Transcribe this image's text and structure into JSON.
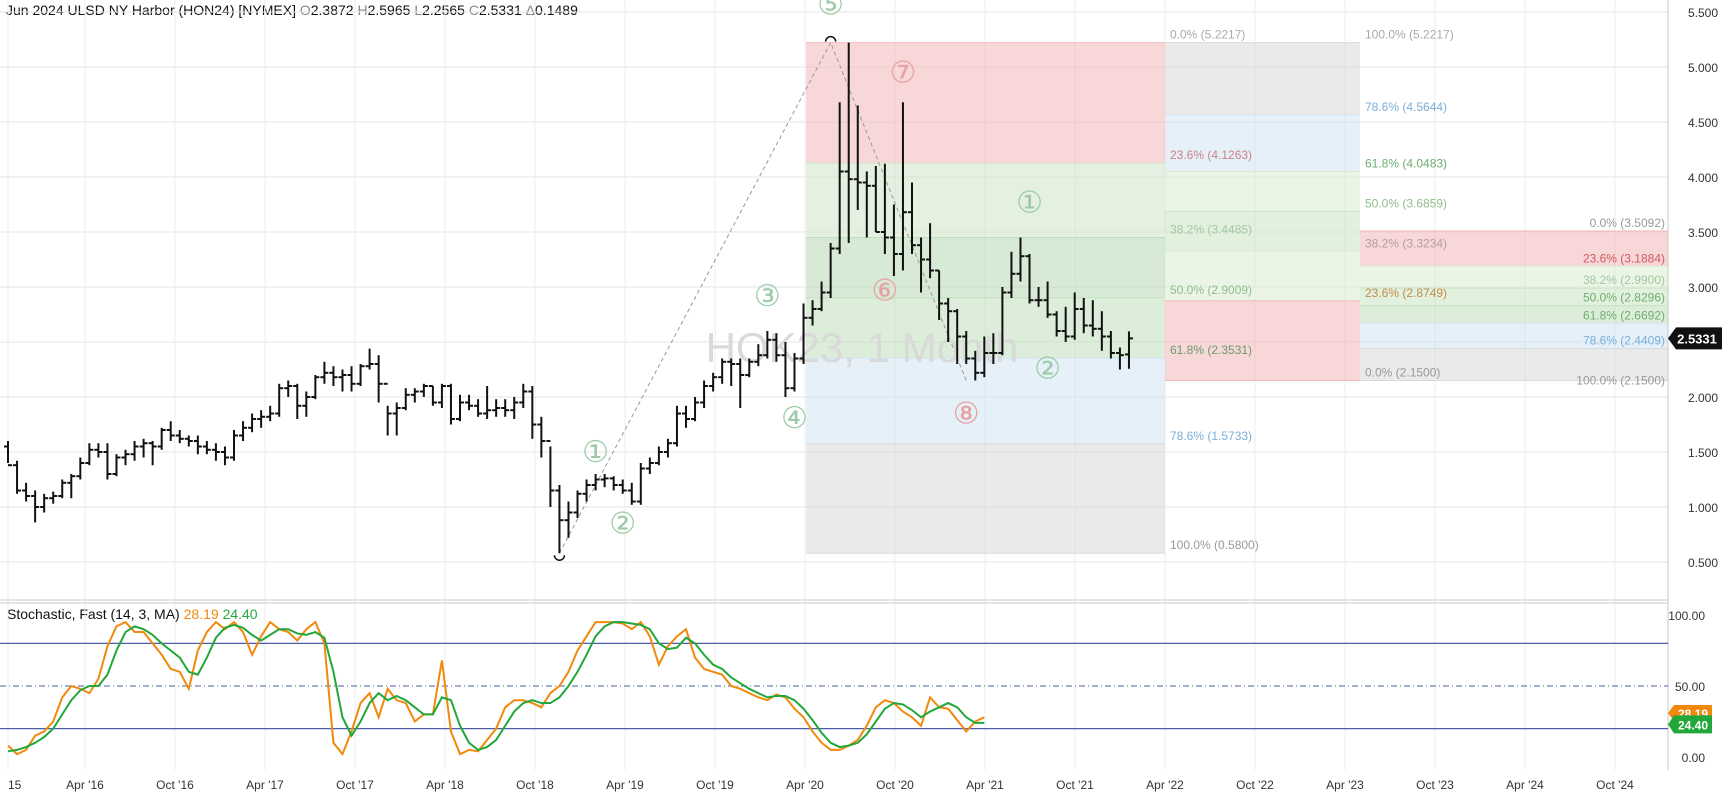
{
  "header": {
    "symbol": "Jun 2024 ULSD NY Harbor (HON24) [NYMEX]",
    "open_label": "O",
    "open": "2.3872",
    "high_label": "H",
    "high": "2.5965",
    "low_label": "L",
    "low": "2.2565",
    "close_label": "C",
    "close": "2.5331",
    "change_label": "Δ",
    "change": "0.1489"
  },
  "watermark": "HOK23, 1 Month",
  "last_price_tag": "2.5331",
  "stoch_header": {
    "title": "Stochastic, Fast  (14, 3, MA)",
    "k": "28.19",
    "d": "24.40"
  },
  "stoch_tags": {
    "k": "28.19",
    "d": "24.40"
  },
  "colors": {
    "up": "#111111",
    "k_line": "#f0890c",
    "d_line": "#22a83a",
    "band_lines": "#4a5fa8"
  },
  "chart_data": {
    "type": "ohlc-bar",
    "price_axis": {
      "min": 0.5,
      "max": 5.5,
      "ticks": [
        "0.500",
        "1.000",
        "1.500",
        "2.000",
        "2.500",
        "3.000",
        "3.500",
        "4.000",
        "4.500",
        "5.000",
        "5.500"
      ]
    },
    "x_ticks": [
      "15",
      "Apr '16",
      "Oct '16",
      "Apr '17",
      "Oct '17",
      "Apr '18",
      "Oct '18",
      "Apr '19",
      "Oct '19",
      "Apr '20",
      "Oct '20",
      "Apr '21",
      "Oct '21",
      "Apr '22",
      "Oct '22",
      "Apr '23",
      "Oct '23",
      "Apr '24",
      "Oct '24"
    ],
    "bars": [
      [
        1.55,
        1.6,
        1.4,
        1.38
      ],
      [
        1.38,
        1.42,
        1.12,
        1.15
      ],
      [
        1.15,
        1.22,
        1.05,
        1.1
      ],
      [
        1.1,
        1.15,
        0.86,
        1.0
      ],
      [
        1.0,
        1.12,
        0.95,
        1.08
      ],
      [
        1.08,
        1.14,
        1.03,
        1.1
      ],
      [
        1.1,
        1.25,
        1.08,
        1.22
      ],
      [
        1.22,
        1.3,
        1.08,
        1.28
      ],
      [
        1.28,
        1.45,
        1.25,
        1.4
      ],
      [
        1.4,
        1.58,
        1.38,
        1.52
      ],
      [
        1.52,
        1.58,
        1.45,
        1.5
      ],
      [
        1.5,
        1.58,
        1.25,
        1.3
      ],
      [
        1.3,
        1.48,
        1.28,
        1.45
      ],
      [
        1.45,
        1.52,
        1.38,
        1.48
      ],
      [
        1.48,
        1.6,
        1.42,
        1.55
      ],
      [
        1.55,
        1.62,
        1.45,
        1.58
      ],
      [
        1.58,
        1.6,
        1.38,
        1.55
      ],
      [
        1.55,
        1.72,
        1.52,
        1.7
      ],
      [
        1.7,
        1.78,
        1.6,
        1.65
      ],
      [
        1.65,
        1.7,
        1.58,
        1.62
      ],
      [
        1.62,
        1.65,
        1.55,
        1.6
      ],
      [
        1.6,
        1.65,
        1.48,
        1.55
      ],
      [
        1.55,
        1.6,
        1.48,
        1.52
      ],
      [
        1.52,
        1.58,
        1.42,
        1.5
      ],
      [
        1.5,
        1.55,
        1.38,
        1.45
      ],
      [
        1.45,
        1.7,
        1.42,
        1.65
      ],
      [
        1.65,
        1.78,
        1.6,
        1.72
      ],
      [
        1.72,
        1.85,
        1.68,
        1.8
      ],
      [
        1.8,
        1.88,
        1.72,
        1.82
      ],
      [
        1.82,
        1.92,
        1.78,
        1.85
      ],
      [
        1.85,
        2.12,
        1.82,
        2.08
      ],
      [
        2.08,
        2.15,
        2.0,
        2.1
      ],
      [
        2.1,
        2.12,
        1.8,
        1.92
      ],
      [
        1.92,
        2.05,
        1.82,
        2.0
      ],
      [
        2.0,
        2.2,
        1.98,
        2.18
      ],
      [
        2.18,
        2.32,
        2.12,
        2.22
      ],
      [
        2.22,
        2.28,
        2.1,
        2.18
      ],
      [
        2.18,
        2.25,
        2.05,
        2.2
      ],
      [
        2.2,
        2.28,
        2.05,
        2.12
      ],
      [
        2.12,
        2.3,
        2.1,
        2.28
      ],
      [
        2.28,
        2.44,
        2.25,
        2.3
      ],
      [
        2.3,
        2.38,
        1.95,
        2.12
      ],
      [
        2.12,
        1.92,
        1.65,
        1.85
      ],
      [
        1.85,
        1.95,
        1.65,
        1.9
      ],
      [
        1.9,
        2.08,
        1.88,
        2.02
      ],
      [
        2.02,
        2.08,
        1.95,
        2.05
      ],
      [
        2.05,
        2.12,
        2.0,
        2.1
      ],
      [
        2.1,
        2.1,
        1.92,
        1.95
      ],
      [
        1.95,
        2.12,
        1.9,
        2.1
      ],
      [
        2.1,
        2.12,
        1.75,
        1.8
      ],
      [
        1.8,
        2.02,
        1.78,
        1.95
      ],
      [
        1.95,
        2.02,
        1.88,
        1.92
      ],
      [
        1.92,
        1.98,
        1.82,
        1.85
      ],
      [
        1.85,
        2.1,
        1.8,
        1.88
      ],
      [
        1.88,
        1.98,
        1.82,
        1.9
      ],
      [
        1.9,
        1.98,
        1.82,
        1.88
      ],
      [
        1.88,
        2.0,
        1.8,
        1.95
      ],
      [
        1.95,
        2.12,
        1.9,
        2.05
      ],
      [
        2.05,
        2.1,
        1.62,
        1.75
      ],
      [
        1.75,
        1.82,
        1.45,
        1.6
      ],
      [
        1.6,
        1.55,
        1.0,
        1.15
      ],
      [
        1.15,
        1.2,
        0.58,
        0.88
      ],
      [
        0.88,
        1.05,
        0.72,
        0.95
      ],
      [
        0.95,
        1.15,
        0.9,
        1.12
      ],
      [
        1.12,
        1.25,
        1.05,
        1.2
      ],
      [
        1.2,
        1.3,
        1.15,
        1.25
      ],
      [
        1.25,
        1.3,
        1.18,
        1.26
      ],
      [
        1.26,
        1.28,
        1.15,
        1.2
      ],
      [
        1.2,
        1.25,
        1.12,
        1.15
      ],
      [
        1.15,
        1.22,
        1.02,
        1.05
      ],
      [
        1.05,
        1.4,
        1.02,
        1.35
      ],
      [
        1.35,
        1.45,
        1.3,
        1.4
      ],
      [
        1.4,
        1.55,
        1.38,
        1.5
      ],
      [
        1.5,
        1.62,
        1.45,
        1.58
      ],
      [
        1.58,
        1.92,
        1.55,
        1.85
      ],
      [
        1.85,
        1.92,
        1.72,
        1.8
      ],
      [
        1.8,
        2.0,
        1.78,
        1.95
      ],
      [
        1.95,
        2.15,
        1.9,
        2.1
      ],
      [
        2.1,
        2.22,
        2.05,
        2.18
      ],
      [
        2.18,
        2.35,
        2.12,
        2.32
      ],
      [
        2.32,
        2.35,
        2.1,
        2.3
      ],
      [
        2.3,
        2.35,
        1.9,
        2.2
      ],
      [
        2.2,
        2.35,
        2.18,
        2.32
      ],
      [
        2.32,
        2.48,
        2.28,
        2.38
      ],
      [
        2.38,
        2.6,
        2.35,
        2.52
      ],
      [
        2.52,
        2.58,
        2.32,
        2.38
      ],
      [
        2.38,
        2.5,
        2.0,
        2.08
      ],
      [
        2.08,
        2.4,
        2.05,
        2.35
      ],
      [
        2.35,
        2.85,
        2.3,
        2.72
      ],
      [
        2.72,
        2.88,
        2.65,
        2.8
      ],
      [
        2.8,
        3.05,
        2.78,
        2.95
      ],
      [
        2.95,
        3.4,
        2.9,
        3.35
      ],
      [
        3.35,
        4.68,
        3.3,
        4.05
      ],
      [
        4.05,
        5.2217,
        3.4,
        3.98
      ],
      [
        3.98,
        4.65,
        3.7,
        3.95
      ],
      [
        3.95,
        4.05,
        3.45,
        3.92
      ],
      [
        3.92,
        4.1,
        3.5,
        3.5
      ],
      [
        3.5,
        4.12,
        3.3,
        3.45
      ],
      [
        3.45,
        3.75,
        3.1,
        3.3
      ],
      [
        3.3,
        4.68,
        3.15,
        3.68
      ],
      [
        3.68,
        3.95,
        3.3,
        3.38
      ],
      [
        3.38,
        3.45,
        2.95,
        3.25
      ],
      [
        3.25,
        3.58,
        3.08,
        3.15
      ],
      [
        3.15,
        3.15,
        2.7,
        2.85
      ],
      [
        2.85,
        2.9,
        2.5,
        2.78
      ],
      [
        2.78,
        2.8,
        2.3,
        2.55
      ],
      [
        2.55,
        2.6,
        2.3,
        2.35
      ],
      [
        2.35,
        2.42,
        2.15,
        2.22
      ],
      [
        2.22,
        2.55,
        2.18,
        2.4
      ],
      [
        2.4,
        2.58,
        2.3,
        2.4
      ],
      [
        2.4,
        3.0,
        2.38,
        2.95
      ],
      [
        2.95,
        3.32,
        2.9,
        3.12
      ],
      [
        3.12,
        3.45,
        3.05,
        3.28
      ],
      [
        3.28,
        3.3,
        2.85,
        2.88
      ],
      [
        2.88,
        3.0,
        2.82,
        2.88
      ],
      [
        2.88,
        3.05,
        2.72,
        2.75
      ],
      [
        2.75,
        2.78,
        2.55,
        2.6
      ],
      [
        2.6,
        2.82,
        2.5,
        2.55
      ],
      [
        2.55,
        2.95,
        2.52,
        2.8
      ],
      [
        2.8,
        2.9,
        2.58,
        2.65
      ],
      [
        2.65,
        2.88,
        2.55,
        2.62
      ],
      [
        2.62,
        2.78,
        2.42,
        2.55
      ],
      [
        2.55,
        2.6,
        2.35,
        2.4
      ],
      [
        2.4,
        2.45,
        2.25,
        2.38
      ],
      [
        2.3872,
        2.5965,
        2.2565,
        2.5331
      ]
    ],
    "fib_left": {
      "levels": [
        {
          "label": "0.0% (5.2217)",
          "value": 5.2217
        },
        {
          "label": "23.6% (4.1263)",
          "value": 4.1263
        },
        {
          "label": "38.2% (3.4485)",
          "value": 3.4485
        },
        {
          "label": "50.0% (2.9009)",
          "value": 2.9009
        },
        {
          "label": "61.8% (2.3531)",
          "value": 2.3531
        },
        {
          "label": "78.6% (1.5733)",
          "value": 1.5733
        },
        {
          "label": "100.0% (0.5800)",
          "value": 0.58
        }
      ]
    },
    "fib_mid": {
      "levels": [
        {
          "label": "100.0% (5.2217)",
          "value": 5.2217
        },
        {
          "label": "78.6% (4.5644)",
          "value": 4.5644
        },
        {
          "label": "61.8% (4.0483)",
          "value": 4.0483
        },
        {
          "label": "50.0% (3.6859)",
          "value": 3.6859
        },
        {
          "label": "38.2% (3.3234)",
          "value": 3.3234
        },
        {
          "label": "23.6% (2.8749)",
          "value": 2.8749
        },
        {
          "label": "0.0% (2.1500)",
          "value": 2.15
        }
      ]
    },
    "fib_right": {
      "levels": [
        {
          "label": "0.0% (3.5092)",
          "value": 3.5092
        },
        {
          "label": "23.6% (3.1884)",
          "value": 3.1884
        },
        {
          "label": "38.2% (2.9900)",
          "value": 2.99
        },
        {
          "label": "50.0% (2.8296)",
          "value": 2.8296
        },
        {
          "label": "61.8% (2.6692)",
          "value": 2.6692
        },
        {
          "label": "78.6% (2.4409)",
          "value": 2.4409
        },
        {
          "label": "100.0% (2.1500)",
          "value": 2.15
        }
      ]
    },
    "wave_labels": [
      {
        "text": "①",
        "bar": 65,
        "price": 1.48,
        "color": "#9ccaa6"
      },
      {
        "text": "②",
        "bar": 68,
        "price": 0.83,
        "color": "#9ccaa6"
      },
      {
        "text": "③",
        "bar": 84,
        "price": 2.9,
        "color": "#9ccaa6"
      },
      {
        "text": "④",
        "bar": 87,
        "price": 1.79,
        "color": "#9ccaa6"
      },
      {
        "text": "⑤",
        "bar": 91,
        "price": 5.55,
        "color": "#9ccaa6"
      },
      {
        "text": "⑥",
        "bar": 97,
        "price": 2.95,
        "color": "#e8a0a0"
      },
      {
        "text": "⑦",
        "bar": 99,
        "price": 4.93,
        "color": "#e8a0a0"
      },
      {
        "text": "⑧",
        "bar": 106,
        "price": 1.83,
        "color": "#e8a0a0"
      },
      {
        "text": "①",
        "bar": 113,
        "price": 3.75,
        "color": "#9ccaa6"
      },
      {
        "text": "②",
        "bar": 115,
        "price": 2.24,
        "color": "#9ccaa6"
      }
    ],
    "stochastic": {
      "ticks": [
        "0.00",
        "50.00",
        "100.00"
      ],
      "upper": 80,
      "lower": 20,
      "mid": 50,
      "k": [
        8,
        2,
        5,
        15,
        18,
        25,
        42,
        50,
        48,
        45,
        55,
        78,
        92,
        95,
        88,
        88,
        80,
        72,
        62,
        60,
        48,
        75,
        88,
        95,
        90,
        95,
        88,
        72,
        85,
        95,
        90,
        88,
        82,
        90,
        95,
        80,
        10,
        2,
        18,
        38,
        45,
        28,
        48,
        40,
        38,
        25,
        30,
        30,
        68,
        18,
        2,
        5,
        4,
        12,
        20,
        35,
        40,
        40,
        38,
        35,
        45,
        50,
        60,
        75,
        85,
        95,
        95,
        95,
        94,
        90,
        95,
        85,
        65,
        78,
        85,
        90,
        70,
        62,
        60,
        58,
        50,
        48,
        45,
        42,
        40,
        44,
        42,
        34,
        28,
        18,
        10,
        5,
        5,
        8,
        12,
        22,
        35,
        40,
        38,
        32,
        28,
        22,
        42,
        35,
        34,
        26,
        18,
        25,
        28
      ],
      "d": [
        4,
        5,
        7,
        10,
        14,
        20,
        30,
        40,
        47,
        50,
        50,
        58,
        75,
        88,
        92,
        90,
        86,
        80,
        75,
        70,
        60,
        58,
        70,
        84,
        91,
        93,
        91,
        86,
        82,
        86,
        90,
        90,
        87,
        86,
        88,
        84,
        60,
        28,
        15,
        25,
        38,
        45,
        40,
        43,
        40,
        35,
        30,
        30,
        42,
        40,
        22,
        10,
        5,
        7,
        12,
        22,
        32,
        38,
        40,
        38,
        38,
        42,
        50,
        60,
        72,
        85,
        92,
        95,
        95,
        94,
        93,
        90,
        80,
        76,
        77,
        84,
        80,
        72,
        65,
        62,
        56,
        52,
        48,
        45,
        42,
        43,
        43,
        40,
        34,
        26,
        17,
        10,
        7,
        8,
        10,
        16,
        25,
        34,
        38,
        37,
        33,
        28,
        32,
        35,
        38,
        35,
        28,
        24,
        24
      ]
    }
  }
}
